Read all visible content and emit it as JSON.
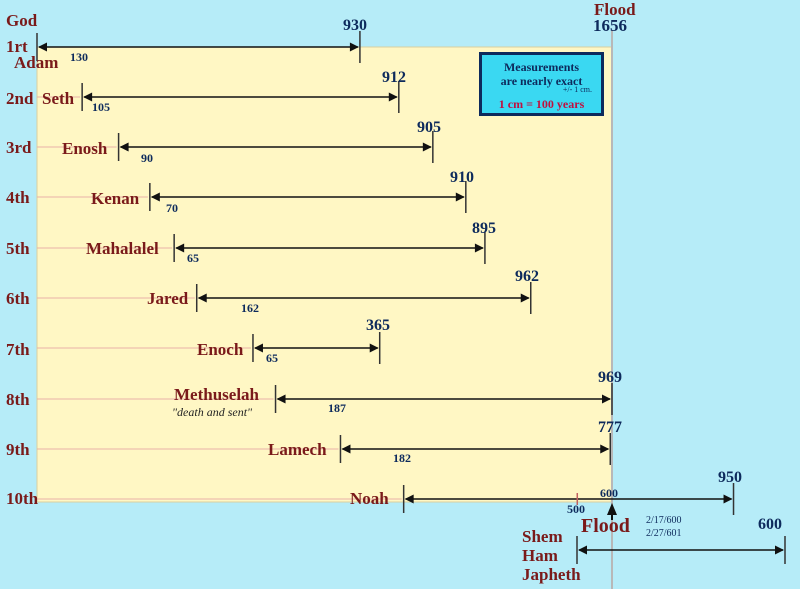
{
  "header": {
    "god": "God",
    "flood": "Flood",
    "flood_year": "1656"
  },
  "legend": {
    "line1": "Measurements",
    "line2": "are nearly exact",
    "tolerance": "+/- 1 cm.",
    "scale": "1 cm = 100 years"
  },
  "generations": [
    {
      "ordinal": "1rt",
      "name": "Adam",
      "start": 0,
      "begat_age": "130",
      "lifespan": "930"
    },
    {
      "ordinal": "2nd",
      "name": "Seth",
      "start": 130,
      "begat_age": "105",
      "lifespan": "912"
    },
    {
      "ordinal": "3rd",
      "name": "Enosh",
      "start": 235,
      "begat_age": "90",
      "lifespan": "905"
    },
    {
      "ordinal": "4th",
      "name": "Kenan",
      "start": 325,
      "begat_age": "70",
      "lifespan": "910"
    },
    {
      "ordinal": "5th",
      "name": "Mahalalel",
      "start": 395,
      "begat_age": "65",
      "lifespan": "895"
    },
    {
      "ordinal": "6th",
      "name": "Jared",
      "start": 460,
      "begat_age": "162",
      "lifespan": "962"
    },
    {
      "ordinal": "7th",
      "name": "Enoch",
      "start": 622,
      "begat_age": "65",
      "lifespan": "365"
    },
    {
      "ordinal": "8th",
      "name": "Methuselah",
      "note": "\"death and sent\"",
      "start": 687,
      "begat_age": "187",
      "lifespan": "969"
    },
    {
      "ordinal": "9th",
      "name": "Lamech",
      "start": 874,
      "begat_age": "182",
      "lifespan": "777"
    },
    {
      "ordinal": "10th",
      "name": "Noah",
      "start": 1056,
      "begat_age": "500",
      "lifespan": "950",
      "flood_age": "600"
    }
  ],
  "flood_section": {
    "label": "Flood",
    "date_start": "2/17/600",
    "date_end": "2/27/601",
    "sons": [
      "Shem",
      "Ham",
      "Japheth"
    ],
    "sons_span": "600"
  },
  "colors": {
    "background": "#b6ecf8",
    "panel": "#fff7c4",
    "maroon": "#7a1a1a",
    "navy": "#0d2a5c",
    "legend_box": "#3ad8f2",
    "legend_accent": "#c01040"
  }
}
